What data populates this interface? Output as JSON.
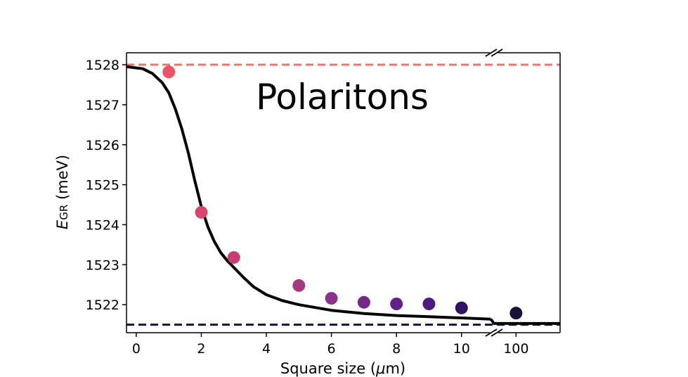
{
  "chart_data": {
    "type": "scatter",
    "title": "",
    "annotation": "Polaritons",
    "xlabel": {
      "prefix": "Square size (",
      "unit_italic": "μ",
      "suffix": "m)"
    },
    "ylabel": {
      "symbol": "E",
      "subscript": "GR",
      "unit": " (meV)"
    },
    "x_ticks": [
      "0",
      "2",
      "4",
      "6",
      "8",
      "10",
      "100"
    ],
    "y_ticks": [
      "1522",
      "1523",
      "1524",
      "1525",
      "1526",
      "1527",
      "1528"
    ],
    "ylim": [
      1521.3,
      1528.3
    ],
    "x_axis_broken": true,
    "x_segments": [
      {
        "range": [
          -0.3,
          11
        ]
      },
      {
        "range": [
          95,
          110
        ]
      }
    ],
    "points": [
      {
        "x": 1,
        "y": 1527.82,
        "color": "#e8556a"
      },
      {
        "x": 2,
        "y": 1524.31,
        "color": "#d8466f"
      },
      {
        "x": 3,
        "y": 1523.18,
        "color": "#c63e73"
      },
      {
        "x": 5,
        "y": 1522.48,
        "color": "#a43a80"
      },
      {
        "x": 6,
        "y": 1522.16,
        "color": "#8b338a"
      },
      {
        "x": 7,
        "y": 1522.06,
        "color": "#76288a"
      },
      {
        "x": 8,
        "y": 1522.02,
        "color": "#612188"
      },
      {
        "x": 9,
        "y": 1522.02,
        "color": "#4d1a7e"
      },
      {
        "x": 10,
        "y": 1521.92,
        "color": "#2f1460"
      },
      {
        "x": 100,
        "y": 1521.79,
        "color": "#1a1236"
      }
    ],
    "fit_curve": {
      "color": "#000000",
      "x": [
        -0.3,
        0.2,
        0.5,
        0.8,
        1.0,
        1.2,
        1.4,
        1.6,
        1.8,
        2.0,
        2.2,
        2.4,
        2.6,
        2.8,
        3.0,
        3.3,
        3.6,
        4.0,
        4.5,
        5.0,
        6.0,
        7.0,
        8.0,
        9.0,
        10.0,
        10.9
      ],
      "y": [
        1527.95,
        1527.9,
        1527.78,
        1527.55,
        1527.3,
        1526.9,
        1526.4,
        1525.8,
        1525.1,
        1524.45,
        1523.95,
        1523.58,
        1523.3,
        1523.1,
        1522.93,
        1522.68,
        1522.45,
        1522.25,
        1522.1,
        1522.0,
        1521.86,
        1521.78,
        1521.73,
        1521.7,
        1521.67,
        1521.64
      ],
      "x_right": [
        95,
        110
      ],
      "y_right": [
        1521.53,
        1521.53
      ]
    },
    "reference_lines": [
      {
        "y": 1528.0,
        "style": "dashed",
        "color": "#e8786f"
      },
      {
        "y": 1521.5,
        "style": "dashed",
        "color": "#1a1236"
      }
    ],
    "grid": false,
    "legend": "none"
  }
}
